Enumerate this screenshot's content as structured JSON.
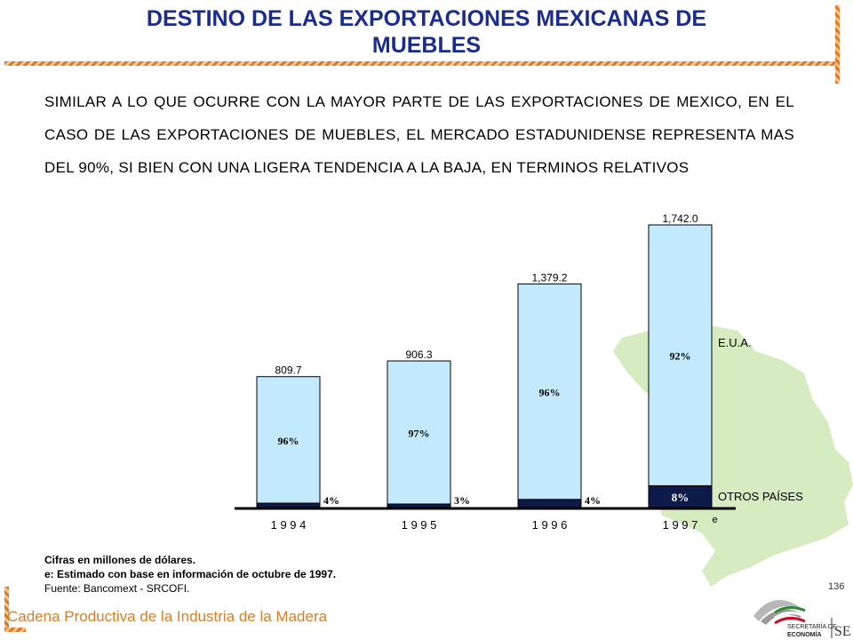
{
  "header": {
    "title_line1": "DESTINO DE LAS EXPORTACIONES MEXICANAS DE",
    "title_line2": "MUEBLES"
  },
  "intro_text": "SIMILAR A LO QUE OCURRE CON LA MAYOR PARTE DE LAS EXPORTACIONES DE MEXICO, EN EL CASO DE LAS EXPORTACIONES DE MUEBLES, EL MERCADO ESTADUNIDENSE REPRESENTA MAS DEL 90%, SI BIEN CON UNA LIGERA TENDENCIA A LA BAJA, EN TERMINOS RELATIVOS",
  "chart_data": {
    "type": "bar",
    "stacked": true,
    "categories": [
      "1 9 9 4",
      "1 9 9 5",
      "1 9 9 6",
      "1 9 9 7"
    ],
    "category_superscripts": [
      "",
      "",
      "",
      "e"
    ],
    "totals": [
      809.7,
      906.3,
      1379.2,
      1742.0
    ],
    "total_labels": [
      "809.7",
      "906.3",
      "1,379.2",
      "1,742.0"
    ],
    "series": [
      {
        "name": "OTROS PAÍSES",
        "share_labels": [
          "4%",
          "3%",
          "4%",
          "8%"
        ],
        "color": "#0d1a4a"
      },
      {
        "name": "E.U.A.",
        "share_labels": [
          "96%",
          "97%",
          "96%",
          "92%"
        ],
        "color": "#c3eafc"
      }
    ],
    "shares": {
      "E.U.A.": [
        96,
        97,
        96,
        92
      ],
      "OTROS PAÍSES": [
        4,
        3,
        4,
        8
      ]
    },
    "ylim": [
      0,
      1742.0
    ],
    "legend_placement": "right"
  },
  "notes": {
    "line1": "Cifras en millones de dólares.",
    "line2": "e: Estimado con base en información de octubre de 1997.",
    "line3": "Fuente: Bancomext - SRCOFI."
  },
  "page_number": "136",
  "footer_text": "Cadena Productiva de la Industria de la Madera",
  "logo": {
    "line1": "SECRETARÍA DE",
    "line2": "ECONOMÍA",
    "mark": "SE"
  },
  "colors": {
    "title": "#1a2d8c",
    "accent_orange": "#e07a20",
    "bar_light": "#c3eafc",
    "bar_dark": "#0d1a4a",
    "map_green": "#d6ecc0"
  }
}
